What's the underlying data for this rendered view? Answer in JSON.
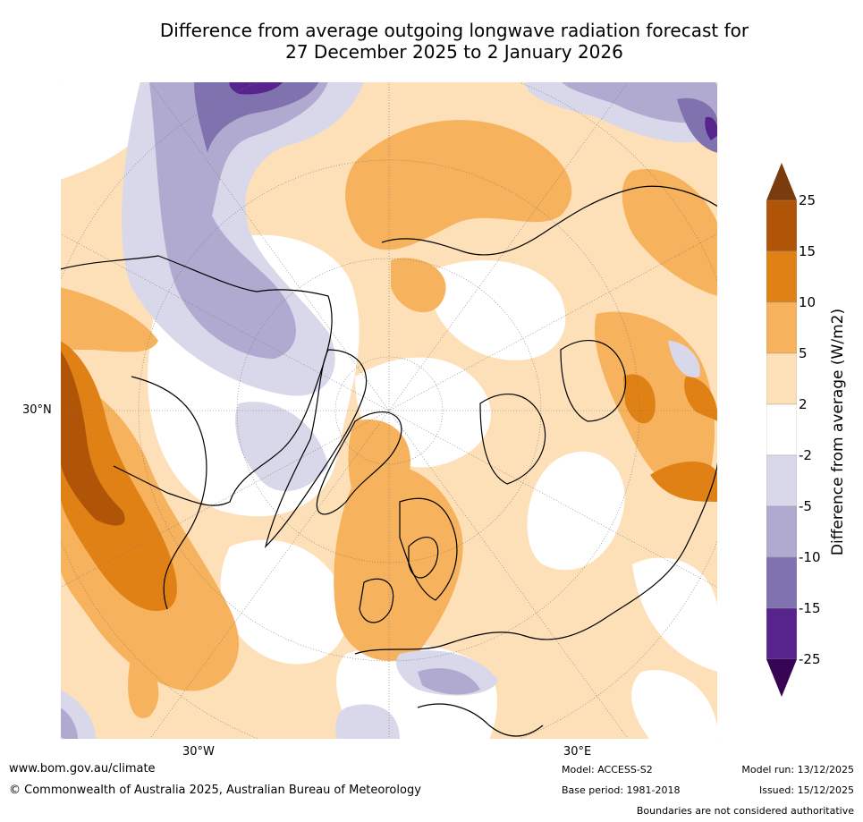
{
  "title_line1": "Difference from average outgoing longwave radiation forecast for",
  "title_line2": "27 December 2025 to 2 January 2026",
  "axes": {
    "lat_label": "30°N",
    "lon_label_west": "30°W",
    "lon_label_east": "30°E"
  },
  "colorbar": {
    "title": "Difference from average (W/m2)",
    "ticks": [
      "25",
      "15",
      "10",
      "5",
      "2",
      "-2",
      "-5",
      "-10",
      "-15",
      "-25"
    ],
    "colors": [
      "#7a3c0c",
      "#b05508",
      "#e08115",
      "#f6b25c",
      "#fde0b8",
      "#ffffff",
      "#d8d8ea",
      "#b0aad0",
      "#8072ae",
      "#56248c",
      "#380555"
    ]
  },
  "footer": {
    "website": "www.bom.gov.au/climate",
    "copyright": "© Commonwealth of Australia 2025, Australian Bureau of Meteorology",
    "model": "Model: ACCESS-S2",
    "base_period": "Base period: 1981-2018",
    "model_run": "Model run: 13/12/2025",
    "issued": "Issued: 15/12/2025",
    "disclaimer": "Boundaries are not considered authoritative"
  }
}
